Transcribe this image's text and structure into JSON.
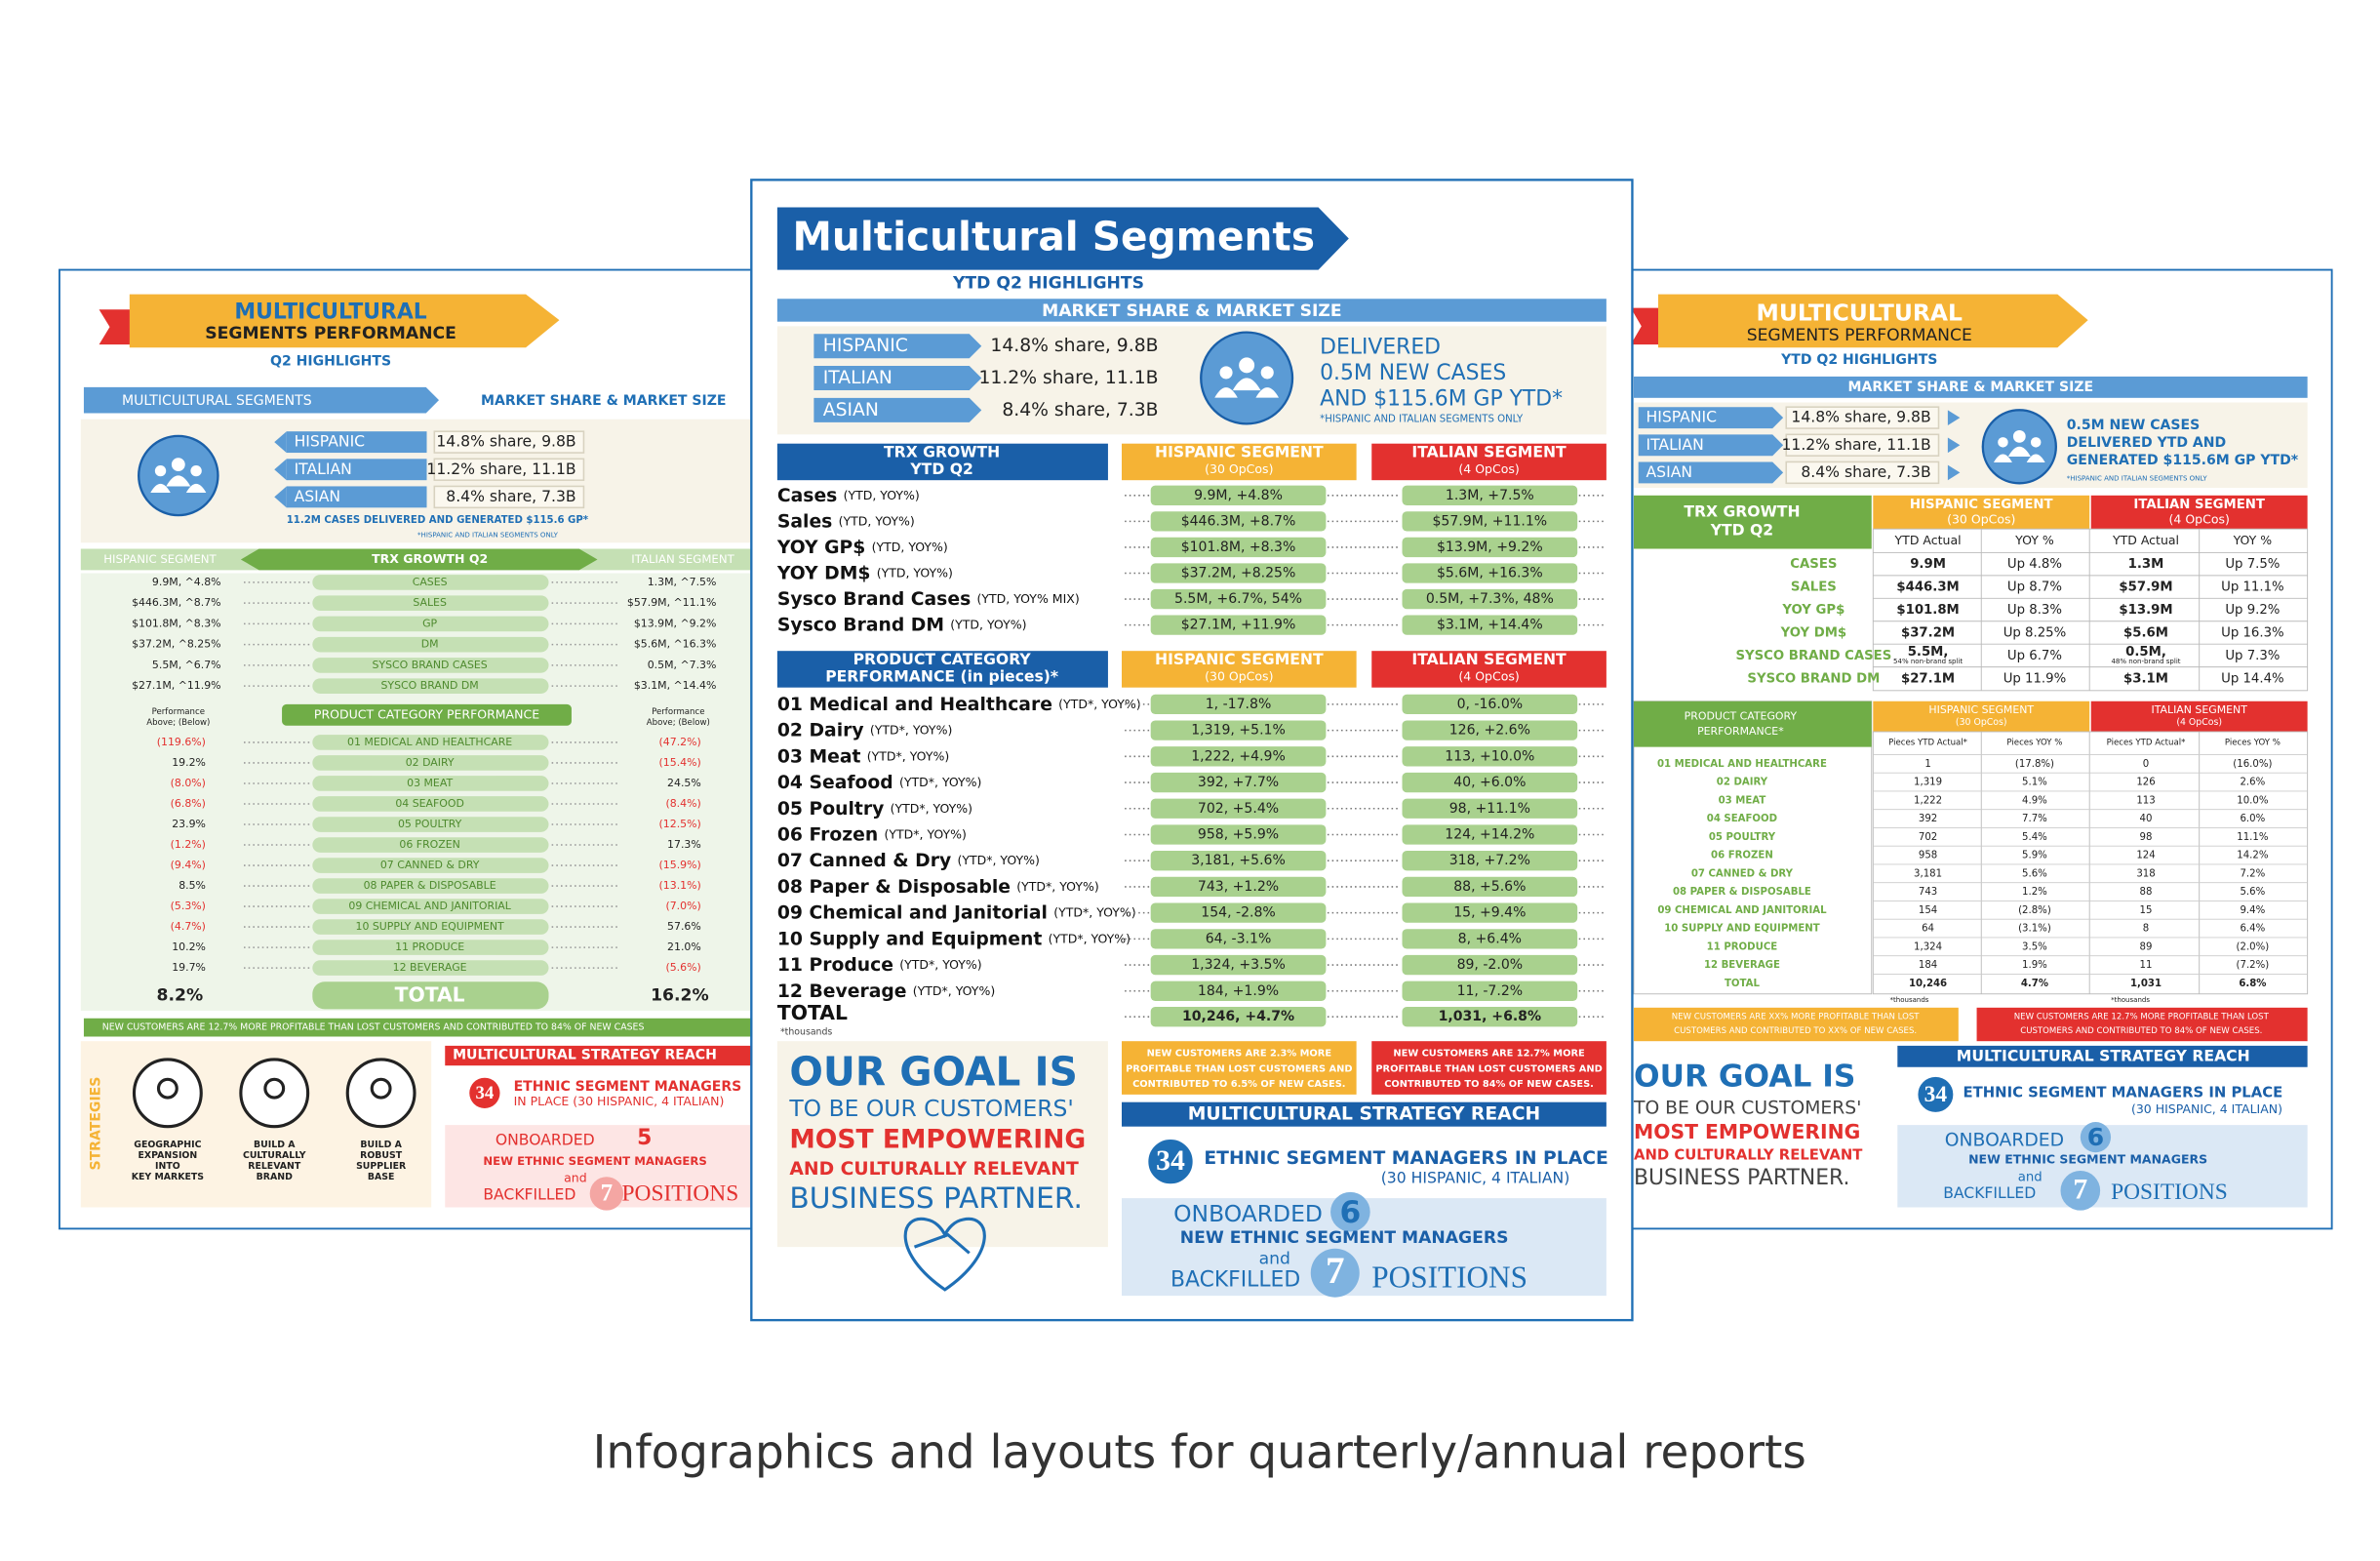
{
  "caption": "Infographics and layouts for quarterly/annual reports",
  "left": {
    "title": [
      "MULTICULTURAL",
      "SEGMENTS PERFORMANCE"
    ],
    "subtitle": "Q2 HIGHLIGHTS",
    "bar_left": "MULTICULTURAL SEGMENTS",
    "bar_right": "MARKET SHARE & MARKET SIZE",
    "segments": [
      {
        "name": "HISPANIC",
        "value": "14.8% share, 9.8B"
      },
      {
        "name": "ITALIAN",
        "value": "11.2% share, 11.1B"
      },
      {
        "name": "ASIAN",
        "value": "8.4% share, 7.3B"
      }
    ],
    "cases_note": "11.2M CASES DELIVERED AND GENERATED $115.6 GP*",
    "segments_note": "*HISPANIC AND ITALIAN SEGMENTS ONLY",
    "trx": {
      "left_head": "HISPANIC SEGMENT",
      "title": "TRX GROWTH Q2",
      "right_head": "ITALIAN SEGMENT",
      "rows": [
        [
          "9.9M, ^4.8%",
          "CASES",
          "1.3M, ^7.5%"
        ],
        [
          "$446.3M, ^8.7%",
          "SALES",
          "$57.9M, ^11.1%"
        ],
        [
          "$101.8M, ^8.3%",
          "GP",
          "$13.9M, ^9.2%"
        ],
        [
          "$37.2M, ^8.25%",
          "DM",
          "$5.6M, ^16.3%"
        ],
        [
          "5.5M, ^6.7%",
          "SYSCO BRAND CASES",
          "0.5M, ^7.3%"
        ],
        [
          "$27.1M, ^11.9%",
          "SYSCO BRAND DM",
          "$3.1M, ^14.4%"
        ]
      ]
    },
    "products": {
      "left_head": [
        "Performance",
        "Above; (Below)"
      ],
      "title": "PRODUCT CATEGORY PERFORMANCE",
      "right_head": [
        "Performance",
        "Above; (Below)"
      ],
      "rows": [
        [
          "(119.6%)",
          "01 MEDICAL AND HEALTHCARE",
          "(47.2%)"
        ],
        [
          "19.2%",
          "02 DAIRY",
          "(15.4%)"
        ],
        [
          "(8.0%)",
          "03 MEAT",
          "24.5%"
        ],
        [
          "(6.8%)",
          "04 SEAFOOD",
          "(8.4%)"
        ],
        [
          "23.9%",
          "05 POULTRY",
          "(12.5%)"
        ],
        [
          "(1.2%)",
          "06 FROZEN",
          "17.3%"
        ],
        [
          "(9.4%)",
          "07 CANNED & DRY",
          "(15.9%)"
        ],
        [
          "8.5%",
          "08 PAPER & DISPOSABLE",
          "(13.1%)"
        ],
        [
          "(5.3%)",
          "09 CHEMICAL AND JANITORIAL",
          "(7.0%)"
        ],
        [
          "(4.7%)",
          "10 SUPPLY AND EQUIPMENT",
          "57.6%"
        ],
        [
          "10.2%",
          "11 PRODUCE",
          "21.0%"
        ],
        [
          "19.7%",
          "12 BEVERAGE",
          "(5.6%)"
        ]
      ],
      "total": [
        "8.2%",
        "TOTAL",
        "16.2%"
      ]
    },
    "banner": "NEW CUSTOMERS ARE 12.7% MORE PROFITABLE THAN LOST CUSTOMERS AND CONTRIBUTED TO 84% OF NEW CASES",
    "strategies": {
      "title": "STRATEGIES",
      "items": [
        [
          "GEOGRAPHIC",
          "EXPANSION",
          "INTO",
          "KEY MARKETS"
        ],
        [
          "BUILD A",
          "CULTURALLY",
          "RELEVANT",
          "BRAND"
        ],
        [
          "BUILD A",
          "ROBUST",
          "SUPPLIER",
          "BASE"
        ]
      ]
    },
    "reach": {
      "title": "MULTICULTURAL STRATEGY REACH",
      "count": "34",
      "managers": "ETHNIC SEGMENT MANAGERS",
      "split": "IN PLACE (30 HISPANIC, 4 ITALIAN)",
      "onboarded": "ONBOARDED",
      "onboarded_count": "5",
      "new_managers": "NEW ETHNIC SEGMENT MANAGERS",
      "and": "and",
      "backfilled": "BACKFILLED",
      "backfilled_count": "7",
      "positions": "POSITIONS"
    }
  },
  "center": {
    "title": "Multicultural Segments",
    "subtitle": "YTD Q2 HIGHLIGHTS",
    "market_bar": "MARKET SHARE & MARKET SIZE",
    "segments": [
      {
        "name": "HISPANIC",
        "value": "14.8% share, 9.8B"
      },
      {
        "name": "ITALIAN",
        "value": "11.2% share, 11.1B"
      },
      {
        "name": "ASIAN",
        "value": "8.4% share, 7.3B"
      }
    ],
    "delivered": [
      "DELIVERED",
      "0.5M NEW CASES",
      "AND $115.6M GP YTD*"
    ],
    "delivered_note": "*HISPANIC AND ITALIAN SEGMENTS ONLY",
    "trx": {
      "title": [
        "TRX GROWTH",
        "YTD Q2"
      ],
      "hisp_head": [
        "HISPANIC SEGMENT",
        "(30 OpCos)"
      ],
      "ital_head": [
        "ITALIAN SEGMENT",
        "(4 OpCos)"
      ],
      "rows": [
        [
          "Cases",
          "(YTD, YOY%)",
          "9.9M, +4.8%",
          "1.3M, +7.5%"
        ],
        [
          "Sales",
          "(YTD, YOY%)",
          "$446.3M, +8.7%",
          "$57.9M, +11.1%"
        ],
        [
          "YOY GP$",
          "(YTD, YOY%)",
          "$101.8M, +8.3%",
          "$13.9M, +9.2%"
        ],
        [
          "YOY DM$",
          "(YTD, YOY%)",
          "$37.2M, +8.25%",
          "$5.6M, +16.3%"
        ],
        [
          "Sysco Brand Cases",
          "(YTD, YOY% MIX)",
          "5.5M, +6.7%, 54%",
          "0.5M, +7.3%, 48%"
        ],
        [
          "Sysco Brand DM",
          "(YTD, YOY%)",
          "$27.1M, +11.9%",
          "$3.1M, +14.4%"
        ]
      ]
    },
    "products": {
      "title": [
        "PRODUCT CATEGORY",
        "PERFORMANCE (in pieces)*"
      ],
      "hisp_head": [
        "HISPANIC SEGMENT",
        "(30 OpCos)"
      ],
      "ital_head": [
        "ITALIAN SEGMENT",
        "(4 OpCos)"
      ],
      "rows": [
        [
          "01 Medical and Healthcare",
          "(YTD*, YOY%)",
          "1, -17.8%",
          "0, -16.0%"
        ],
        [
          "02 Dairy",
          "(YTD*, YOY%)",
          "1,319, +5.1%",
          "126, +2.6%"
        ],
        [
          "03 Meat",
          "(YTD*, YOY%)",
          "1,222, +4.9%",
          "113, +10.0%"
        ],
        [
          "04 Seafood",
          "(YTD*, YOY%)",
          "392, +7.7%",
          "40, +6.0%"
        ],
        [
          "05 Poultry",
          "(YTD*, YOY%)",
          "702, +5.4%",
          "98, +11.1%"
        ],
        [
          "06 Frozen",
          "(YTD*, YOY%)",
          "958, +5.9%",
          "124, +14.2%"
        ],
        [
          "07 Canned & Dry",
          "(YTD*, YOY%)",
          "3,181, +5.6%",
          "318, +7.2%"
        ],
        [
          "08 Paper & Disposable",
          "(YTD*, YOY%)",
          "743, +1.2%",
          "88, +5.6%"
        ],
        [
          "09 Chemical and Janitorial",
          "(YTD*, YOY%)",
          "154, -2.8%",
          "15, +9.4%"
        ],
        [
          "10 Supply and Equipment",
          "(YTD*, YOY%)",
          "64, -3.1%",
          "8, +6.4%"
        ],
        [
          "11 Produce",
          "(YTD*, YOY%)",
          "1,324, +3.5%",
          "89, -2.0%"
        ],
        [
          "12 Beverage",
          "(YTD*, YOY%)",
          "184, +1.9%",
          "11, -7.2%"
        ]
      ],
      "total": [
        "TOTAL",
        "10,246, +4.7%",
        "1,031, +6.8%"
      ],
      "footnote": "*thousands"
    },
    "goal": [
      "OUR GOAL IS",
      "TO BE OUR CUSTOMERS'",
      "MOST EMPOWERING",
      "AND CULTURALLY RELEVANT",
      "BUSINESS PARTNER."
    ],
    "notes": [
      [
        "NEW CUSTOMERS ARE 2.3% MORE",
        "PROFITABLE THAN LOST CUSTOMERS AND",
        "CONTRIBUTED TO 6.5% OF NEW CASES."
      ],
      [
        "NEW CUSTOMERS ARE 12.7% MORE",
        "PROFITABLE THAN LOST CUSTOMERS AND",
        "CONTRIBUTED TO 84% OF NEW CASES."
      ]
    ],
    "reach": {
      "title": "MULTICULTURAL STRATEGY REACH",
      "count": "34",
      "managers": "ETHNIC SEGMENT MANAGERS IN PLACE",
      "split": "(30 HISPANIC, 4 ITALIAN)",
      "onboarded": "ONBOARDED",
      "onboarded_count": "6",
      "new_managers": "NEW ETHNIC SEGMENT MANAGERS",
      "and": "and",
      "backfilled": "BACKFILLED",
      "backfilled_count": "7",
      "positions": "POSITIONS"
    }
  },
  "right": {
    "title": [
      "MULTICULTURAL",
      "SEGMENTS PERFORMANCE"
    ],
    "subtitle": "YTD Q2 HIGHLIGHTS",
    "market_bar": "MARKET SHARE & MARKET SIZE",
    "segments": [
      {
        "name": "HISPANIC",
        "value": "14.8% share, 9.8B"
      },
      {
        "name": "ITALIAN",
        "value": "11.2% share, 11.1B"
      },
      {
        "name": "ASIAN",
        "value": "8.4% share, 7.3B"
      }
    ],
    "delivered": [
      "0.5M NEW CASES",
      "DELIVERED YTD AND",
      "GENERATED $115.6M GP YTD*"
    ],
    "delivered_note": "*HISPANIC AND ITALIAN SEGMENTS ONLY",
    "trx": {
      "title": [
        "TRX GROWTH",
        "YTD Q2"
      ],
      "hisp_head": [
        "HISPANIC SEGMENT",
        "(30 OpCos)"
      ],
      "ital_head": [
        "ITALIAN SEGMENT",
        "(4 OpCos)"
      ],
      "subheads": [
        "YTD Actual",
        "YOY %",
        "YTD Actual",
        "YOY %"
      ],
      "rows": [
        [
          "CASES",
          "9.9M",
          "Up 4.8%",
          "1.3M",
          "Up 7.5%"
        ],
        [
          "SALES",
          "$446.3M",
          "Up 8.7%",
          "$57.9M",
          "Up 11.1%"
        ],
        [
          "YOY GP$",
          "$101.8M",
          "Up 8.3%",
          "$13.9M",
          "Up 9.2%"
        ],
        [
          "YOY DM$",
          "$37.2M",
          "Up 8.25%",
          "$5.6M",
          "Up 16.3%"
        ],
        [
          "SYSCO BRAND CASES",
          [
            "5.5M,",
            "54% non-brand split"
          ],
          "Up 6.7%",
          [
            "0.5M,",
            "48% non-brand split"
          ],
          "Up 7.3%"
        ],
        [
          "SYSCO BRAND DM",
          "$27.1M",
          "Up 11.9%",
          "$3.1M",
          "Up 14.4%"
        ]
      ]
    },
    "products": {
      "title": [
        "PRODUCT CATEGORY",
        "PERFORMANCE*"
      ],
      "hisp_head": [
        "HISPANIC SEGMENT",
        "(30 OpCos)"
      ],
      "ital_head": [
        "ITALIAN SEGMENT",
        "(4 OpCos)"
      ],
      "subheads": [
        "Pieces YTD Actual*",
        "Pieces YOY %",
        "Pieces YTD Actual*",
        "Pieces YOY %"
      ],
      "rows": [
        [
          "01 MEDICAL AND HEALTHCARE",
          "1",
          "(17.8%)",
          "0",
          "(16.0%)"
        ],
        [
          "02 DAIRY",
          "1,319",
          "5.1%",
          "126",
          "2.6%"
        ],
        [
          "03 MEAT",
          "1,222",
          "4.9%",
          "113",
          "10.0%"
        ],
        [
          "04 SEAFOOD",
          "392",
          "7.7%",
          "40",
          "6.0%"
        ],
        [
          "05 POULTRY",
          "702",
          "5.4%",
          "98",
          "11.1%"
        ],
        [
          "06 FROZEN",
          "958",
          "5.9%",
          "124",
          "14.2%"
        ],
        [
          "07 CANNED & DRY",
          "3,181",
          "5.6%",
          "318",
          "7.2%"
        ],
        [
          "08 PAPER & DISPOSABLE",
          "743",
          "1.2%",
          "88",
          "5.6%"
        ],
        [
          "09 CHEMICAL AND JANITORIAL",
          "154",
          "(2.8%)",
          "15",
          "9.4%"
        ],
        [
          "10 SUPPLY AND EQUIPMENT",
          "64",
          "(3.1%)",
          "8",
          "6.4%"
        ],
        [
          "11 PRODUCE",
          "1,324",
          "3.5%",
          "89",
          "(2.0%)"
        ],
        [
          "12 BEVERAGE",
          "184",
          "1.9%",
          "11",
          "(7.2%)"
        ],
        [
          "TOTAL",
          "10,246",
          "4.7%",
          "1,031",
          "6.8%"
        ]
      ],
      "footnotes": [
        "*thousands",
        "*thousands"
      ]
    },
    "notes": [
      [
        "NEW CUSTOMERS ARE XX% MORE PROFITABLE THAN LOST",
        "CUSTOMERS AND CONTRIBUTED TO XX% OF NEW CASES."
      ],
      [
        "NEW CUSTOMERS ARE 12.7% MORE PROFITABLE THAN LOST",
        "CUSTOMERS AND CONTRIBUTED TO 84% OF NEW CASES."
      ]
    ],
    "goal": [
      "OUR GOAL IS",
      "TO BE OUR CUSTOMERS'",
      "MOST EMPOWERING",
      "AND CULTURALLY RELEVANT",
      "BUSINESS PARTNER."
    ],
    "reach": {
      "title": "MULTICULTURAL STRATEGY REACH",
      "count": "34",
      "managers": "ETHNIC SEGMENT MANAGERS IN PLACE",
      "split": "(30 HISPANIC, 4 ITALIAN)",
      "onboarded": "ONBOARDED",
      "onboarded_count": "6",
      "new_managers": "NEW ETHNIC SEGMENT MANAGERS",
      "and": "and",
      "backfilled": "BACKFILLED",
      "backfilled_count": "7",
      "positions": "POSITIONS"
    }
  }
}
